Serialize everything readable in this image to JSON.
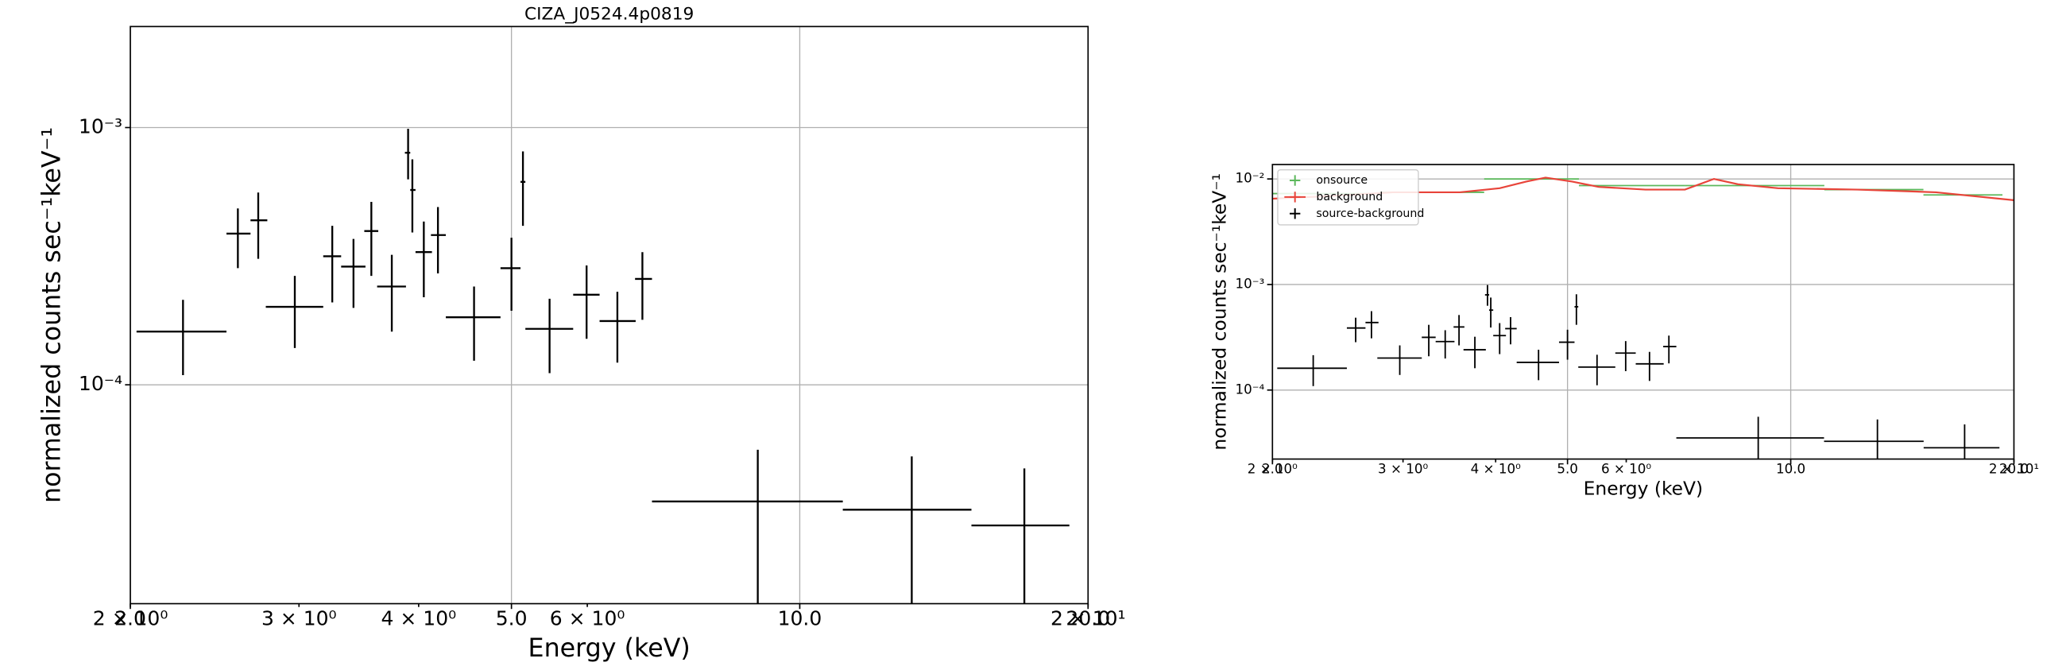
{
  "chart_data": [
    {
      "type": "errorbar",
      "title": "CIZA_J0524.4p0819",
      "xlabel": "Energy (keV)",
      "ylabel": "normalized counts sec⁻¹keV⁻¹",
      "xscale": "log",
      "yscale": "log",
      "grid": true,
      "xlim": [
        2.0,
        20.0
      ],
      "ylim": [
        1.41e-05,
        0.00247
      ],
      "xticks": [
        {
          "value": 2.0,
          "label": "2.0"
        },
        {
          "value": 5.0,
          "label": "5.0"
        },
        {
          "value": 10.0,
          "label": "10.0"
        },
        {
          "value": 20.0,
          "label": "20.0"
        }
      ],
      "xminorticks": [
        {
          "value": 2,
          "label": "2 × 10⁰"
        },
        {
          "value": 3,
          "label": "3 × 10⁰"
        },
        {
          "value": 4,
          "label": "4 × 10⁰"
        },
        {
          "value": 6,
          "label": "6 × 10⁰"
        },
        {
          "value": 20,
          "label": "2 × 10¹"
        }
      ],
      "yticks": [
        {
          "value": 0.001,
          "label": "10⁻³"
        },
        {
          "value": 0.0001,
          "label": "10⁻⁴"
        }
      ],
      "series": [
        {
          "color": "#000000",
          "points": [
            {
              "x": 2.27,
              "x_lo": 2.03,
              "x_hi": 2.52,
              "y": 0.000161,
              "y_lo": 0.000109,
              "y_hi": 0.000214
            },
            {
              "x": 2.59,
              "x_lo": 2.52,
              "x_hi": 2.67,
              "y": 0.000387,
              "y_lo": 0.000284,
              "y_hi": 0.000485
            },
            {
              "x": 2.72,
              "x_lo": 2.67,
              "x_hi": 2.78,
              "y": 0.000436,
              "y_lo": 0.000309,
              "y_hi": 0.000559
            },
            {
              "x": 2.97,
              "x_lo": 2.77,
              "x_hi": 3.18,
              "y": 0.000201,
              "y_lo": 0.000139,
              "y_hi": 0.000265
            },
            {
              "x": 3.25,
              "x_lo": 3.18,
              "x_hi": 3.32,
              "y": 0.000316,
              "y_lo": 0.000209,
              "y_hi": 0.000415
            },
            {
              "x": 3.42,
              "x_lo": 3.32,
              "x_hi": 3.52,
              "y": 0.000288,
              "y_lo": 0.000199,
              "y_hi": 0.000369
            },
            {
              "x": 3.57,
              "x_lo": 3.51,
              "x_hi": 3.63,
              "y": 0.000396,
              "y_lo": 0.000265,
              "y_hi": 0.000514
            },
            {
              "x": 3.75,
              "x_lo": 3.62,
              "x_hi": 3.88,
              "y": 0.000241,
              "y_lo": 0.000161,
              "y_hi": 0.00032
            },
            {
              "x": 3.9,
              "x_lo": 3.87,
              "x_hi": 3.92,
              "y": 0.000798,
              "y_lo": 0.000629,
              "y_hi": 0.000989
            },
            {
              "x": 3.94,
              "x_lo": 3.92,
              "x_hi": 3.97,
              "y": 0.000572,
              "y_lo": 0.000391,
              "y_hi": 0.000752
            },
            {
              "x": 4.05,
              "x_lo": 3.97,
              "x_hi": 4.13,
              "y": 0.000328,
              "y_lo": 0.000219,
              "y_hi": 0.000431
            },
            {
              "x": 4.19,
              "x_lo": 4.12,
              "x_hi": 4.27,
              "y": 0.000382,
              "y_lo": 0.000271,
              "y_hi": 0.000491
            },
            {
              "x": 4.57,
              "x_lo": 4.27,
              "x_hi": 4.87,
              "y": 0.000183,
              "y_lo": 0.000124,
              "y_hi": 0.000241
            },
            {
              "x": 5.0,
              "x_lo": 4.87,
              "x_hi": 5.11,
              "y": 0.000284,
              "y_lo": 0.000194,
              "y_hi": 0.000373
            },
            {
              "x": 5.14,
              "x_lo": 5.11,
              "x_hi": 5.17,
              "y": 0.000615,
              "y_lo": 0.000415,
              "y_hi": 0.000808
            },
            {
              "x": 5.48,
              "x_lo": 5.17,
              "x_hi": 5.8,
              "y": 0.000165,
              "y_lo": 0.000111,
              "y_hi": 0.000216
            },
            {
              "x": 5.99,
              "x_lo": 5.8,
              "x_hi": 6.18,
              "y": 0.000224,
              "y_lo": 0.000151,
              "y_hi": 0.000291
            },
            {
              "x": 6.45,
              "x_lo": 6.18,
              "x_hi": 6.74,
              "y": 0.000177,
              "y_lo": 0.000122,
              "y_hi": 0.00023
            },
            {
              "x": 6.85,
              "x_lo": 6.73,
              "x_hi": 7.01,
              "y": 0.000258,
              "y_lo": 0.000179,
              "y_hi": 0.000328
            },
            {
              "x": 9.04,
              "x_lo": 7.01,
              "x_hi": 11.09,
              "y": 3.52e-05,
              "y_lo": null,
              "y_hi": 5.59e-05
            },
            {
              "x": 13.09,
              "x_lo": 11.09,
              "x_hi": 15.11,
              "y": 3.27e-05,
              "y_lo": null,
              "y_hi": 5.27e-05
            },
            {
              "x": 17.16,
              "x_lo": 15.11,
              "x_hi": 19.12,
              "y": 2.84e-05,
              "y_lo": null,
              "y_hi": 4.73e-05
            }
          ]
        }
      ]
    },
    {
      "type": "errorbar",
      "xlabel": "Energy (keV)",
      "ylabel": "normalized counts sec⁻¹keV⁻¹",
      "xscale": "log",
      "yscale": "log",
      "grid": true,
      "legend": "upper left",
      "xlim": [
        2.0,
        20.0
      ],
      "ylim": [
        2.22e-05,
        0.0137
      ],
      "xticks": [
        {
          "value": 2.0,
          "label": "2.0"
        },
        {
          "value": 5.0,
          "label": "5.0"
        },
        {
          "value": 10.0,
          "label": "10.0"
        },
        {
          "value": 20.0,
          "label": "20.0"
        }
      ],
      "xminorticks": [
        {
          "value": 2,
          "label": "2 × 10⁰"
        },
        {
          "value": 3,
          "label": "3 × 10⁰"
        },
        {
          "value": 4,
          "label": "4 × 10⁰"
        },
        {
          "value": 6,
          "label": "6 × 10⁰"
        },
        {
          "value": 20,
          "label": "2 × 10¹"
        }
      ],
      "yticks": [
        {
          "value": 0.01,
          "label": "10⁻²"
        },
        {
          "value": 0.001,
          "label": "10⁻³"
        },
        {
          "value": 0.0001,
          "label": "10⁻⁴"
        }
      ],
      "series": [
        {
          "name": "onsource",
          "color": "#5cb85c",
          "points": [
            {
              "x_lo": 2.0,
              "x_hi": 2.79,
              "y": 0.00727
            },
            {
              "x_lo": 2.79,
              "x_hi": 3.86,
              "y": 0.00748
            },
            {
              "x_lo": 3.86,
              "x_hi": 5.18,
              "y": 0.01
            },
            {
              "x_lo": 5.18,
              "x_hi": 7.2,
              "y": 0.00865
            },
            {
              "x_lo": 7.2,
              "x_hi": 11.1,
              "y": 0.00865
            },
            {
              "x_lo": 11.1,
              "x_hi": 15.1,
              "y": 0.00793
            },
            {
              "x_lo": 15.1,
              "x_hi": 19.3,
              "y": 0.00706
            }
          ]
        },
        {
          "name": "background",
          "color": "#e8443a",
          "x": [
            2.0,
            2.37,
            2.91,
            3.58,
            4.05,
            4.4,
            4.67,
            5.07,
            5.51,
            6.37,
            7.2,
            7.88,
            8.49,
            9.61,
            12.3,
            15.7,
            20.0
          ],
          "values": [
            0.0065,
            0.00686,
            0.00748,
            0.00748,
            0.00817,
            0.00944,
            0.0103,
            0.00944,
            0.0084,
            0.00793,
            0.00793,
            0.01,
            0.00891,
            0.00817,
            0.00793,
            0.00748,
            0.00629
          ]
        },
        {
          "name": "source-background",
          "color": "#000000"
        }
      ]
    }
  ]
}
